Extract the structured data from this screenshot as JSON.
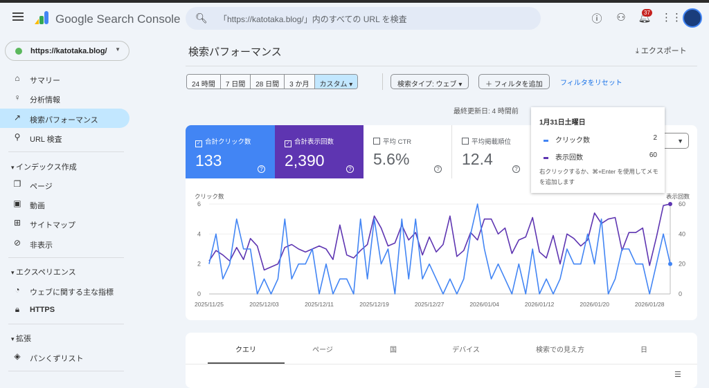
{
  "app": {
    "brand": "Google Search Console",
    "search_placeholder": "「https://katotaka.blog/」内のすべての URL を検査",
    "notifications": "37"
  },
  "property": "https://katotaka.blog/",
  "sidebar": {
    "items": [
      {
        "label": "サマリー",
        "icon": "home"
      },
      {
        "label": "分析情報",
        "icon": "lightbulb"
      },
      {
        "label": "検索パフォーマンス",
        "icon": "trending-up"
      },
      {
        "label": "URL 検査",
        "icon": "search"
      }
    ],
    "sections": [
      {
        "label": "インデックス作成",
        "items": [
          {
            "label": "ページ",
            "icon": "pages"
          },
          {
            "label": "動画",
            "icon": "video"
          },
          {
            "label": "サイトマップ",
            "icon": "sitemap"
          },
          {
            "label": "非表示",
            "icon": "eye-off"
          }
        ]
      },
      {
        "label": "エクスペリエンス",
        "items": [
          {
            "label": "ウェブに関する主な指標",
            "icon": "gauge"
          },
          {
            "label": "HTTPS",
            "icon": "lock"
          }
        ]
      },
      {
        "label": "拡張",
        "items": [
          {
            "label": "パンくずリスト",
            "icon": "layers"
          }
        ]
      }
    ]
  },
  "page": {
    "title": "検索パフォーマンス",
    "export": "エクスポート",
    "updated": "最終更新日: 4 時間前"
  },
  "date_ranges": [
    "24 時間",
    "7 日間",
    "28 日間",
    "3 か月",
    "カスタム"
  ],
  "filters": {
    "search_type": "検索タイプ: ウェブ",
    "add_filter": "フィルタを追加",
    "reset": "フィルタをリセット"
  },
  "metrics": [
    {
      "label": "合計クリック数",
      "value": "133",
      "checked": true,
      "color": "#4285f4"
    },
    {
      "label": "合計表示回数",
      "value": "2,390",
      "checked": true,
      "color": "#5e35b1"
    },
    {
      "label": "平均 CTR",
      "value": "5.6%",
      "checked": false
    },
    {
      "label": "平均掲載順位",
      "value": "12.4",
      "checked": false
    }
  ],
  "tooltip": {
    "date": "1月31日土曜日",
    "rows": [
      {
        "label": "クリック数",
        "value": "2"
      },
      {
        "label": "表示回数",
        "value": "60"
      }
    ],
    "hint": "右クリックするか、⌘+Enter を使用してメモを追加します"
  },
  "chart_data": {
    "type": "line",
    "x_start": "2025/11/25",
    "x_end": "2026/01/31",
    "x_tick_labels": [
      "2025/11/25",
      "2025/12/03",
      "2025/12/11",
      "2025/12/19",
      "2025/12/27",
      "2026/01/04",
      "2026/01/12",
      "2026/01/20",
      "2026/01/28"
    ],
    "left_axis": {
      "label": "クリック数",
      "ylim": [
        0,
        6
      ],
      "ticks": [
        "0",
        "2",
        "4",
        "6"
      ]
    },
    "right_axis": {
      "label": "表示回数",
      "ylim": [
        0,
        60
      ],
      "ticks": [
        "0",
        "20",
        "40",
        "60"
      ]
    },
    "grid": true,
    "series": [
      {
        "name": "クリック数",
        "axis": "left",
        "color": "#4285f4",
        "values": [
          2,
          4,
          1,
          2,
          5,
          3,
          3,
          0,
          1,
          0,
          1,
          5,
          1,
          2,
          2,
          3,
          0,
          2,
          0,
          1,
          1,
          0,
          5,
          1,
          5,
          2,
          3,
          0,
          5,
          1,
          5,
          1,
          2,
          1,
          0,
          1,
          0,
          1,
          4,
          6,
          3,
          1,
          2,
          1,
          0,
          2,
          0,
          3,
          0,
          1,
          0,
          1,
          3,
          2,
          2,
          4,
          2,
          5,
          0,
          1,
          3,
          3,
          2,
          2,
          0,
          2,
          4,
          2
        ]
      },
      {
        "name": "表示回数",
        "axis": "right",
        "color": "#5e35b1",
        "values": [
          22,
          29,
          26,
          22,
          31,
          23,
          37,
          32,
          16,
          18,
          20,
          31,
          33,
          30,
          28,
          30,
          32,
          30,
          23,
          46,
          26,
          24,
          29,
          33,
          52,
          44,
          32,
          34,
          46,
          36,
          41,
          26,
          38,
          28,
          33,
          52,
          25,
          29,
          41,
          36,
          50,
          50,
          40,
          44,
          27,
          36,
          38,
          51,
          28,
          24,
          39,
          20,
          40,
          37,
          32,
          36,
          54,
          47,
          50,
          51,
          29,
          41,
          41,
          44,
          19,
          38,
          59,
          60
        ]
      }
    ]
  },
  "table_tabs": [
    "クエリ",
    "ページ",
    "国",
    "デバイス",
    "検索での見え方",
    "日"
  ]
}
